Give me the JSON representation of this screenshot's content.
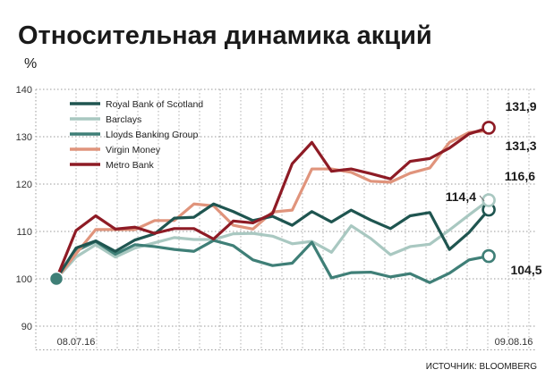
{
  "chart_data": {
    "type": "line",
    "title": "Относительная динамика акций",
    "unit": "%",
    "source": "ИСТОЧНИК: BLOOMBERG",
    "ylim": [
      85,
      140
    ],
    "yticks": [
      90,
      100,
      110,
      120,
      130,
      140
    ],
    "x": [
      0,
      1,
      2,
      3,
      4,
      5,
      6,
      7,
      8,
      9,
      10,
      11,
      12,
      13,
      14,
      15,
      16,
      17,
      18,
      19,
      20,
      21,
      22,
      23,
      24
    ],
    "x_tick_labels": [
      {
        "x": 0,
        "label": "08.07.16"
      },
      {
        "x": 24,
        "label": "09.08.16"
      }
    ],
    "grid": "dotted",
    "legend_position": "top-left",
    "series": [
      {
        "name": "Royal Bank of Scotland",
        "color": "#1f5550",
        "values": [
          100,
          106.5,
          108,
          105.8,
          108.2,
          109.5,
          112.8,
          113,
          115.8,
          114.2,
          112.3,
          113.2,
          111.3,
          114.2,
          112,
          114.5,
          112.4,
          110.6,
          113.3,
          114,
          106.2,
          109.8,
          114.6,
          114.4,
          114.4
        ],
        "end_label": "114,4"
      },
      {
        "name": "Barclays",
        "color": "#a9c8c1",
        "values": [
          100,
          104.6,
          107.2,
          104.6,
          106.5,
          107.6,
          108.7,
          108.3,
          108.3,
          109.5,
          109.6,
          109,
          107.4,
          107.9,
          105.6,
          111.2,
          108.5,
          105.1,
          106.8,
          107.3,
          110.3,
          113.5,
          116.6,
          116.6,
          116.6
        ],
        "end_label": "116,6"
      },
      {
        "name": "Lloyds Banking Group",
        "color": "#3f7f77",
        "values": [
          100,
          105.9,
          107.9,
          105.2,
          107.2,
          106.8,
          106.2,
          105.8,
          108.1,
          107,
          104,
          102.8,
          103.3,
          107.7,
          100.2,
          101.3,
          101.4,
          100.4,
          101.1,
          99.2,
          101.2,
          104,
          104.8,
          104.5,
          104.5
        ],
        "end_label": "104,5"
      },
      {
        "name": "Virgin Money",
        "color": "#e0947c",
        "values": [
          100,
          105.3,
          110.4,
          110.4,
          110.4,
          112.3,
          112.3,
          115.8,
          115.4,
          111.3,
          110.5,
          114.1,
          114.5,
          123.2,
          123.2,
          122.5,
          120.6,
          120.4,
          122.3,
          123.4,
          128.8,
          130.9,
          131.3,
          131.3,
          131.3
        ],
        "end_label": "131,3"
      },
      {
        "name": "Metro Bank",
        "color": "#8e1b25",
        "values": [
          100,
          110.2,
          113.3,
          110.5,
          110.9,
          109.6,
          110.6,
          110.6,
          108.4,
          112.2,
          111.8,
          113.8,
          124.3,
          128.8,
          122.7,
          123.2,
          122.2,
          121.1,
          124.8,
          125.4,
          127.6,
          130.6,
          131.9,
          131.9,
          131.9
        ],
        "end_label": "131,9"
      }
    ]
  }
}
